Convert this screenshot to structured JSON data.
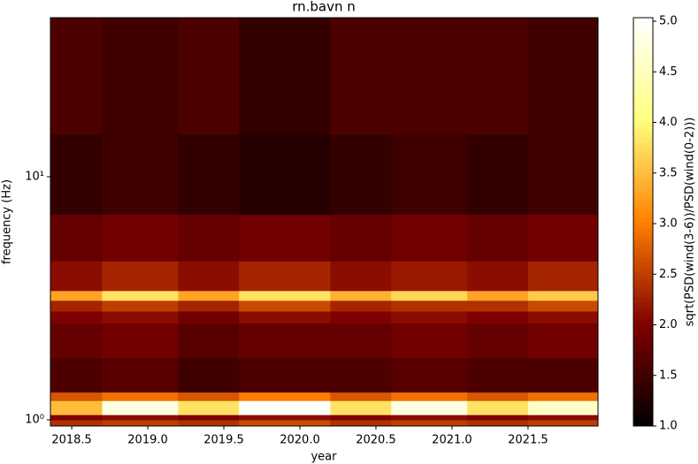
{
  "chart_data": {
    "type": "heatmap",
    "title": "rn.bavn n",
    "xlabel": "year",
    "ylabel": "frequency (Hz)",
    "colorbar_label": "sqrt(PSD(wind(3-6))/PSD(wind(0-2)))",
    "colormap": "afmhot",
    "ylog": true,
    "x_edges": [
      2018.36,
      2018.7,
      2019.2,
      2019.6,
      2020.2,
      2020.6,
      2021.1,
      2021.5,
      2021.96
    ],
    "y_edges": [
      0.943,
      1.0,
      1.05,
      1.2,
      1.3,
      1.8,
      2.5,
      2.8,
      3.1,
      3.4,
      4.5,
      7,
      15,
      45.1
    ],
    "z": [
      [
        2.4,
        2.5,
        2.4,
        2.6,
        2.4,
        2.5,
        2.4,
        2.5
      ],
      [
        2.0,
        2.1,
        2.0,
        2.1,
        2.0,
        2.1,
        2.0,
        2.1
      ],
      [
        3.5,
        4.8,
        3.8,
        5.0,
        3.8,
        4.8,
        3.8,
        4.6
      ],
      [
        2.7,
        2.9,
        2.7,
        3.0,
        2.7,
        2.9,
        2.7,
        2.9
      ],
      [
        1.6,
        1.7,
        1.5,
        1.6,
        1.6,
        1.7,
        1.6,
        1.6
      ],
      [
        1.8,
        1.9,
        1.7,
        1.8,
        1.8,
        1.9,
        1.8,
        1.9
      ],
      [
        2.0,
        2.1,
        1.9,
        2.1,
        2.0,
        2.1,
        2.0,
        2.1
      ],
      [
        2.3,
        2.5,
        2.3,
        2.6,
        2.3,
        2.4,
        2.4,
        2.6
      ],
      [
        3.3,
        3.8,
        3.3,
        3.8,
        3.4,
        3.7,
        3.3,
        3.6
      ],
      [
        2.1,
        2.3,
        2.1,
        2.3,
        2.1,
        2.2,
        2.1,
        2.3
      ],
      [
        1.8,
        1.9,
        1.8,
        1.9,
        1.8,
        1.9,
        1.8,
        1.9
      ],
      [
        1.4,
        1.5,
        1.4,
        1.3,
        1.4,
        1.5,
        1.4,
        1.5
      ],
      [
        1.6,
        1.5,
        1.6,
        1.4,
        1.6,
        1.6,
        1.6,
        1.5
      ]
    ],
    "xlim": [
      2018.36,
      2021.96
    ],
    "xticks": [
      2018.5,
      {
        "value": 2019.0,
        "label": "2019.0"
      },
      2019.5,
      {
        "value": 2020.0,
        "label": "2020.0"
      },
      2020.5,
      {
        "value": 2021.0,
        "label": "2021.0"
      },
      2021.5
    ],
    "ylim": [
      0.943,
      45.1
    ],
    "yticks": [
      {
        "value": 1,
        "label": "10⁰"
      },
      {
        "value": 10,
        "label": "10¹"
      }
    ],
    "clim": [
      1.0,
      5.035
    ],
    "colorbar_ticks": [
      {
        "value": 1.0,
        "label": "1.0"
      },
      1.5,
      {
        "value": 2.0,
        "label": "2.0"
      },
      2.5,
      {
        "value": 3.0,
        "label": "3.0"
      },
      3.5,
      {
        "value": 4.0,
        "label": "4.0"
      },
      4.5,
      {
        "value": 5.0,
        "label": "5.0"
      }
    ]
  }
}
